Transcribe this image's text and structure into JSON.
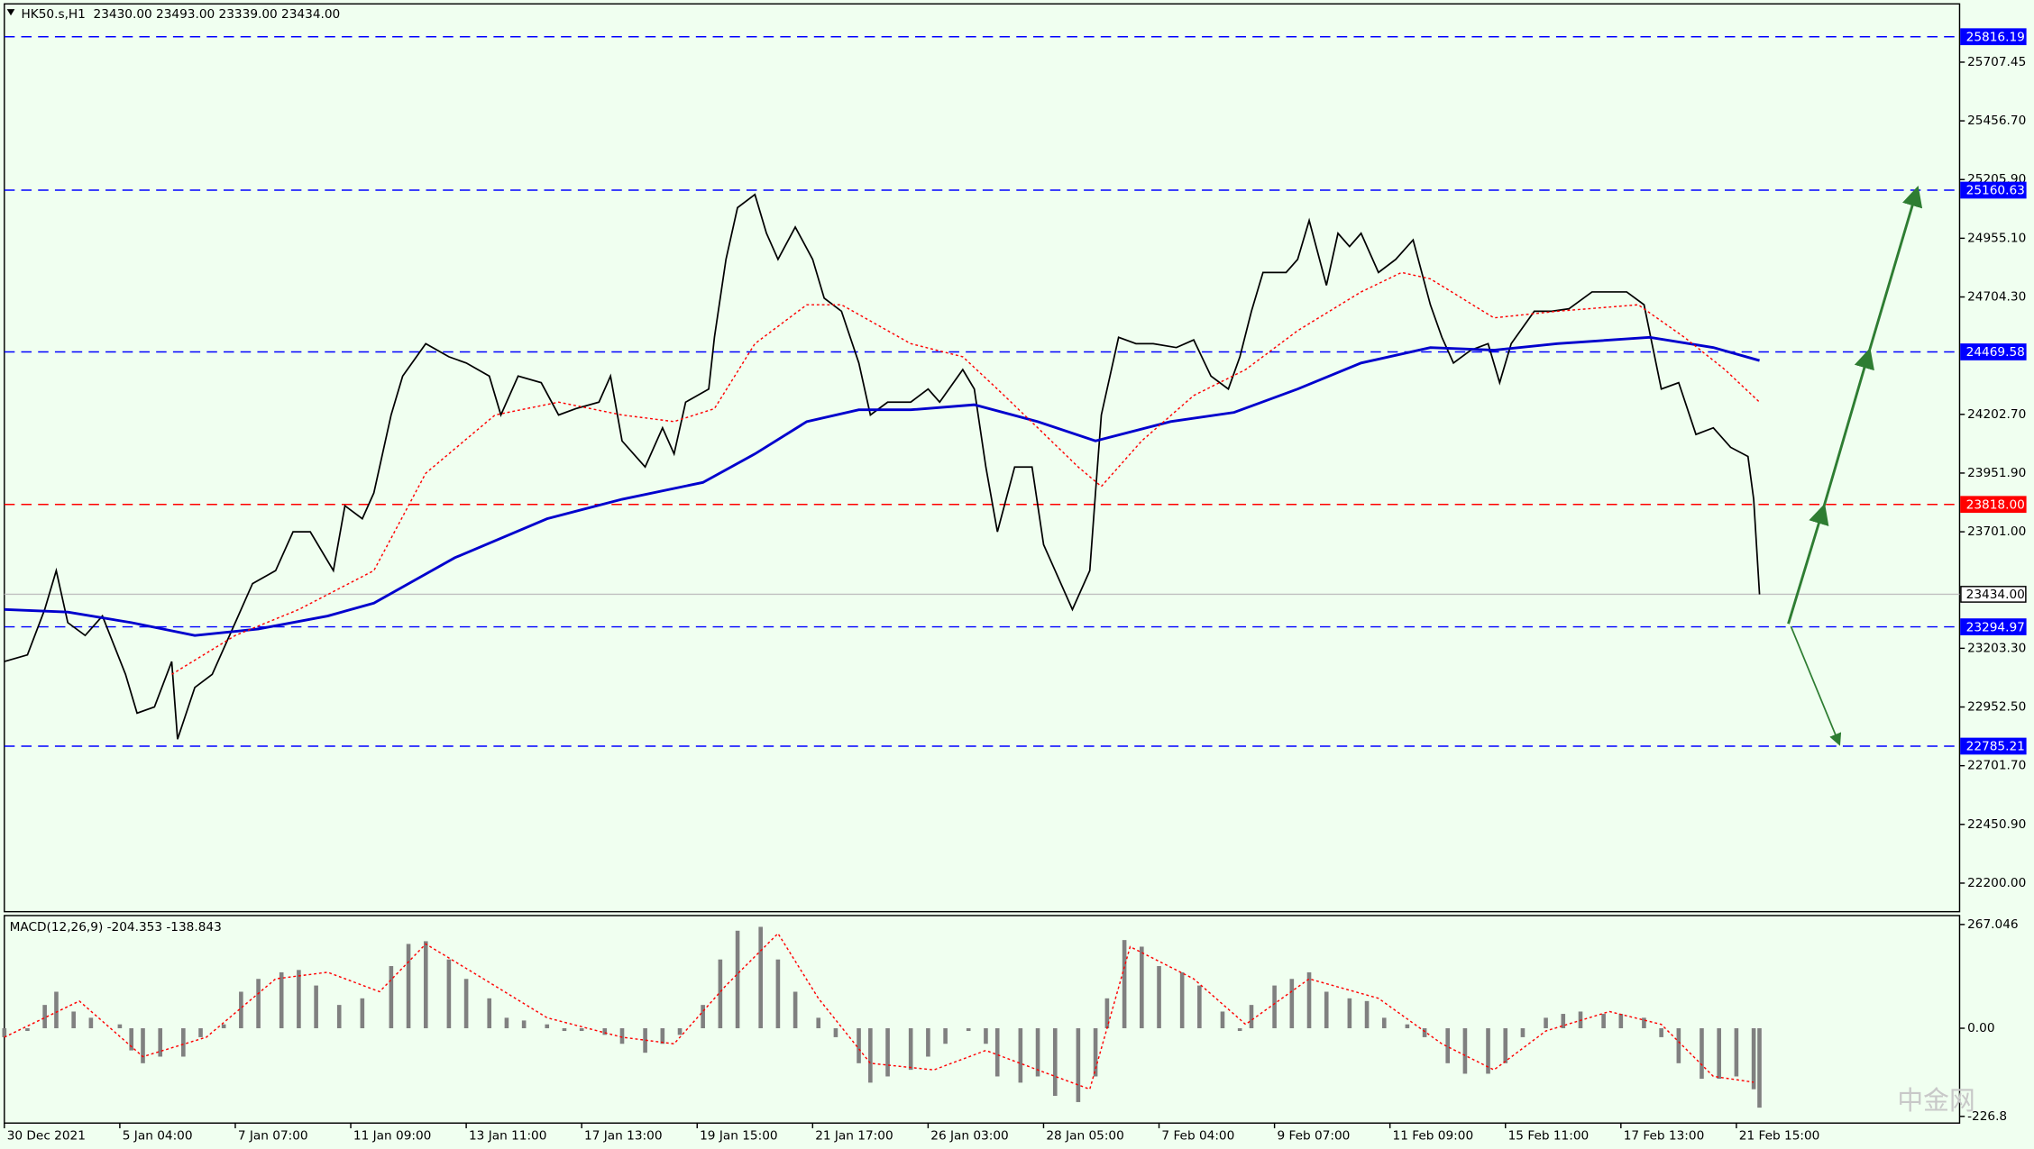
{
  "chart_data": [
    {
      "type": "line",
      "title": "HK50.s,H1  23430.00 23493.00 23339.00 23434.00",
      "xlim": [
        0,
        339
      ],
      "xticks": [
        {
          "value": 0,
          "label": "30 Dec 2021"
        },
        {
          "value": 20,
          "label": "5 Jan 04:00"
        },
        {
          "value": 40,
          "label": "7 Jan 07:00"
        },
        {
          "value": 60,
          "label": "11 Jan 09:00"
        },
        {
          "value": 80,
          "label": "13 Jan 11:00"
        },
        {
          "value": 100,
          "label": "17 Jan 13:00"
        },
        {
          "value": 120,
          "label": "19 Jan 15:00"
        },
        {
          "value": 140,
          "label": "21 Jan 17:00"
        },
        {
          "value": 160,
          "label": "26 Jan 03:00"
        },
        {
          "value": 180,
          "label": "28 Jan 05:00"
        },
        {
          "value": 200,
          "label": "7 Feb 04:00"
        },
        {
          "value": 220,
          "label": "9 Feb 07:00"
        },
        {
          "value": 240,
          "label": "11 Feb 09:00"
        },
        {
          "value": 260,
          "label": "15 Feb 11:00"
        },
        {
          "value": 280,
          "label": "17 Feb 13:00"
        },
        {
          "value": 300,
          "label": "21 Feb 15:00"
        }
      ],
      "ylim": [
        22078,
        25973
      ],
      "yticks": [
        25707.45,
        {
          "value": 25456.7,
          "label": "25456.70"
        },
        {
          "value": 25205.9,
          "label": "25205.90"
        },
        {
          "value": 24955.1,
          "label": "24955.10"
        },
        {
          "value": 24704.3,
          "label": "24704.30"
        },
        {
          "value": 24202.7,
          "label": "24202.70"
        },
        {
          "value": 23951.9,
          "label": "23951.90"
        },
        {
          "value": 23701,
          "label": "23701.00"
        },
        {
          "value": 23203.3,
          "label": "23203.30"
        },
        {
          "value": 22952.5,
          "label": "22952.50"
        },
        {
          "value": 22701.7,
          "label": "22701.70"
        },
        {
          "value": 22450.9,
          "label": "22450.90"
        },
        {
          "value": 22200,
          "label": "22200.00"
        }
      ],
      "levels": [
        {
          "value": 25816.19,
          "color": "#0000ff"
        },
        {
          "value": 25160.63,
          "color": "#0000ff"
        },
        {
          "value": 24469.58,
          "color": "#0000ff"
        },
        {
          "value": 23818,
          "label": "23818.00",
          "color": "#ff0000"
        },
        {
          "value": 23434,
          "label": "23434.00",
          "color": "#c0c0c0",
          "box_color": "#ffffff"
        },
        {
          "value": 23294.97,
          "color": "#0000ff"
        },
        {
          "value": 22785.21,
          "color": "#0000ff"
        }
      ],
      "series": [
        {
          "color": "#000000",
          "width": 1.2,
          "x": [
            0,
            4,
            7,
            9,
            11,
            14,
            17,
            21,
            23,
            26,
            29,
            30,
            33,
            36,
            40,
            43,
            47,
            50,
            53,
            57,
            59,
            62,
            64,
            67,
            69,
            73,
            77,
            80,
            84,
            86,
            89,
            93,
            96,
            99,
            103,
            105,
            107,
            111,
            114,
            116,
            118,
            122,
            123,
            125,
            127,
            130,
            132,
            134,
            137,
            140,
            142,
            145,
            148,
            150,
            153,
            157,
            160,
            162,
            166,
            168,
            170,
            172,
            175,
            178,
            180,
            182,
            185,
            188,
            189,
            190,
            193,
            196,
            199,
            203,
            206,
            209,
            212,
            214,
            216,
            218,
            222,
            224,
            226,
            229,
            231,
            233,
            235,
            238,
            241,
            244,
            247,
            249,
            251,
            254,
            257,
            259,
            261,
            265,
            268,
            271,
            275,
            278,
            281,
            284,
            287,
            290,
            293,
            296,
            299,
            302,
            303,
            304
          ],
          "values": [
            23147,
            23175,
            23369,
            23535,
            23313,
            23258,
            23341,
            23092,
            22926,
            22953,
            23147,
            22815,
            23036,
            23092,
            23313,
            23480,
            23535,
            23701,
            23701,
            23535,
            23812,
            23757,
            23867,
            24200,
            24366,
            24505,
            24449,
            24422,
            24366,
            24200,
            24366,
            24338,
            24200,
            24227,
            24255,
            24366,
            24089,
            23978,
            24145,
            24034,
            24255,
            24311,
            24532,
            24865,
            25086,
            25142,
            24976,
            24865,
            25003,
            24865,
            24699,
            24643,
            24422,
            24200,
            24255,
            24255,
            24311,
            24255,
            24394,
            24311,
            23978,
            23701,
            23978,
            23978,
            23646,
            23535,
            23369,
            23535,
            23867,
            24200,
            24532,
            24505,
            24505,
            24488,
            24521,
            24366,
            24311,
            24449,
            24643,
            24809,
            24809,
            24865,
            25031,
            24754,
            24976,
            24920,
            24976,
            24809,
            24865,
            24948,
            24671,
            24532,
            24422,
            24477,
            24505,
            24338,
            24505,
            24643,
            24643,
            24654,
            24726,
            24726,
            24726,
            24671,
            24311,
            24338,
            24117,
            24145,
            24062,
            24023,
            23840,
            23434
          ]
        },
        {
          "color": "#0000cd",
          "width": 2,
          "x": [
            0,
            11,
            22,
            33,
            44,
            56,
            64,
            78,
            94,
            107,
            121,
            130,
            139,
            148,
            157,
            168,
            179,
            189,
            202,
            213,
            224,
            235,
            247,
            258,
            269,
            285,
            296,
            304
          ],
          "values": [
            23369,
            23358,
            23313,
            23258,
            23286,
            23341,
            23396,
            23590,
            23757,
            23840,
            23912,
            24034,
            24172,
            24222,
            24222,
            24244,
            24172,
            24089,
            24172,
            24211,
            24311,
            24422,
            24488,
            24477,
            24505,
            24532,
            24488,
            24433
          ]
        },
        {
          "color": "#ff0000",
          "width": 1,
          "dash": true,
          "x": [
            29,
            40,
            51,
            64,
            73,
            85,
            96,
            107,
            116,
            123,
            130,
            139,
            145,
            157,
            166,
            172,
            179,
            186,
            190,
            197,
            206,
            215,
            224,
            235,
            242,
            247,
            258,
            269,
            283,
            291,
            298,
            304
          ],
          "values": [
            23092,
            23258,
            23369,
            23535,
            23951,
            24200,
            24255,
            24200,
            24172,
            24227,
            24505,
            24671,
            24671,
            24505,
            24449,
            24311,
            24145,
            23978,
            23895,
            24089,
            24283,
            24394,
            24560,
            24726,
            24809,
            24782,
            24615,
            24643,
            24671,
            24532,
            24394,
            24255
          ]
        }
      ]
    },
    {
      "type": "macd",
      "title": "MACD(12,26,9) -204.353 -138.843",
      "ylim": [
        -244,
        290
      ],
      "yticks": [
        267.046,
        {
          "value": 0,
          "label": "0.00"
        },
        -226.8
      ],
      "series": [
        {
          "color": "#808080",
          "x": [
            0,
            4,
            7,
            9,
            12,
            15,
            20,
            22,
            24,
            27,
            31,
            34,
            38,
            41,
            44,
            48,
            51,
            54,
            58,
            62,
            67,
            70,
            73,
            77,
            80,
            84,
            87,
            90,
            94,
            97,
            100,
            104,
            107,
            111,
            114,
            117,
            121,
            124,
            127,
            131,
            134,
            137,
            141,
            144,
            148,
            150,
            153,
            157,
            160,
            163,
            167,
            170,
            172,
            176,
            179,
            182,
            186,
            189,
            191,
            194,
            197,
            200,
            204,
            207,
            211,
            214,
            216,
            220,
            223,
            226,
            229,
            233,
            236,
            239,
            243,
            246,
            250,
            253,
            257,
            260,
            263,
            267,
            270,
            273,
            277,
            280,
            284,
            287,
            290,
            294,
            297,
            300,
            303,
            304
          ],
          "values": [
            -23,
            -7,
            60,
            94,
            43,
            27,
            10,
            -57,
            -90,
            -73,
            -73,
            -23,
            10,
            94,
            127,
            144,
            150,
            110,
            60,
            77,
            160,
            217,
            224,
            177,
            127,
            77,
            27,
            20,
            10,
            -7,
            -7,
            -17,
            -40,
            -63,
            -40,
            -17,
            60,
            177,
            251,
            261,
            177,
            94,
            27,
            -23,
            -90,
            -140,
            -124,
            -107,
            -73,
            -40,
            -7,
            -40,
            -124,
            -140,
            -124,
            -174,
            -190,
            -124,
            77,
            227,
            210,
            160,
            144,
            110,
            43,
            -7,
            60,
            110,
            127,
            144,
            94,
            77,
            70,
            27,
            10,
            -23,
            -90,
            -117,
            -117,
            -90,
            -23,
            27,
            37,
            43,
            37,
            37,
            27,
            -23,
            -90,
            -130,
            -130,
            -124,
            -157,
            -204.353
          ]
        },
        {
          "color": "#ff0000",
          "dash": true,
          "x": [
            0,
            13,
            24,
            35,
            47,
            56,
            65,
            73,
            83,
            94,
            107,
            116,
            125,
            134,
            141,
            150,
            161,
            170,
            179,
            188,
            195,
            206,
            215,
            226,
            238,
            249,
            258,
            267,
            278,
            287,
            296,
            303
          ],
          "values": [
            -23,
            70,
            -73,
            -23,
            127,
            144,
            94,
            217,
            127,
            27,
            -23,
            -40,
            110,
            244,
            77,
            -90,
            -107,
            -57,
            -107,
            -157,
            210,
            127,
            10,
            127,
            77,
            -40,
            -107,
            -7,
            43,
            10,
            -124,
            -138.843
          ]
        }
      ]
    }
  ],
  "watermark": "中金网"
}
